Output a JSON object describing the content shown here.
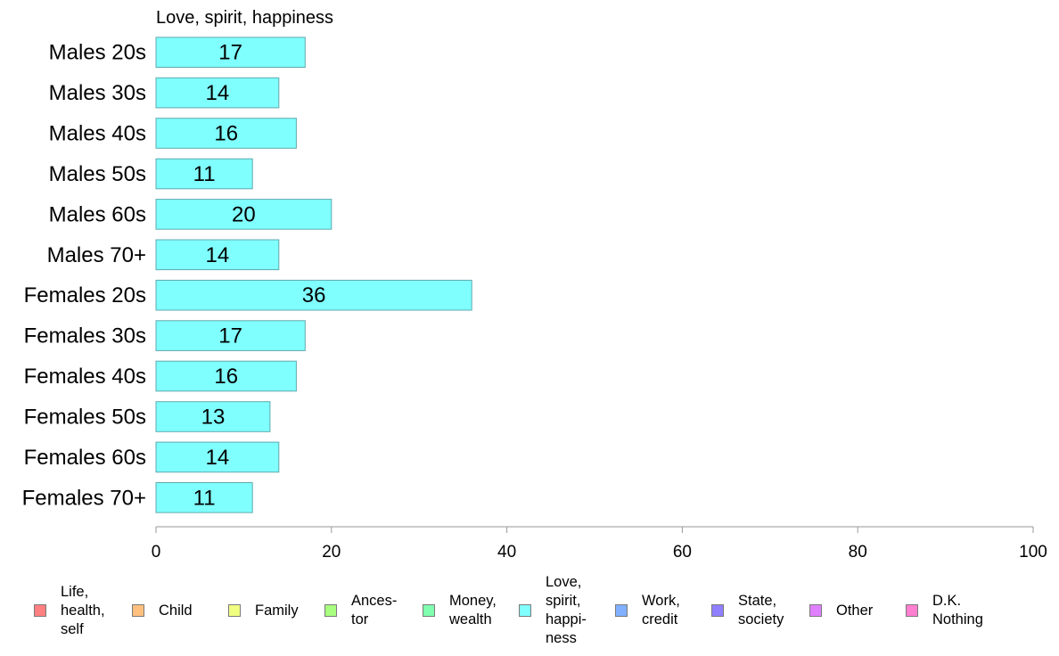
{
  "chart_data": {
    "type": "bar",
    "orientation": "horizontal",
    "subtitle": "Love, spirit, happiness",
    "categories": [
      "Males 20s",
      "Males 30s",
      "Males 40s",
      "Males 50s",
      "Males 60s",
      "Males 70+",
      "Females 20s",
      "Females 30s",
      "Females 40s",
      "Females 50s",
      "Females 60s",
      "Females 70+"
    ],
    "values": [
      17,
      14,
      16,
      11,
      20,
      14,
      36,
      17,
      16,
      13,
      14,
      11
    ],
    "xlim": [
      0,
      100
    ],
    "xticks": [
      0,
      20,
      40,
      60,
      80,
      100
    ],
    "bar_color": "#80ffff",
    "bar_edge_color": "#5fa8ad",
    "grid": false,
    "legend_position": "bottom",
    "legend": [
      {
        "label": "Life,\nhealth,\nself",
        "color": "#ff8080"
      },
      {
        "label": "Child",
        "color": "#ffc080"
      },
      {
        "label": "Family",
        "color": "#f0ff80"
      },
      {
        "label": "Ances-\ntor",
        "color": "#a8ff80"
      },
      {
        "label": "Money,\nwealth",
        "color": "#80ffb0"
      },
      {
        "label": "Love,\nspirit,\nhappi-\nness",
        "color": "#80ffff"
      },
      {
        "label": "Work,\ncredit",
        "color": "#80b0ff"
      },
      {
        "label": "State,\nsociety",
        "color": "#9080ff"
      },
      {
        "label": "Other",
        "color": "#e080ff"
      },
      {
        "label": "D.K.\nNothing",
        "color": "#ff80d0"
      }
    ]
  }
}
